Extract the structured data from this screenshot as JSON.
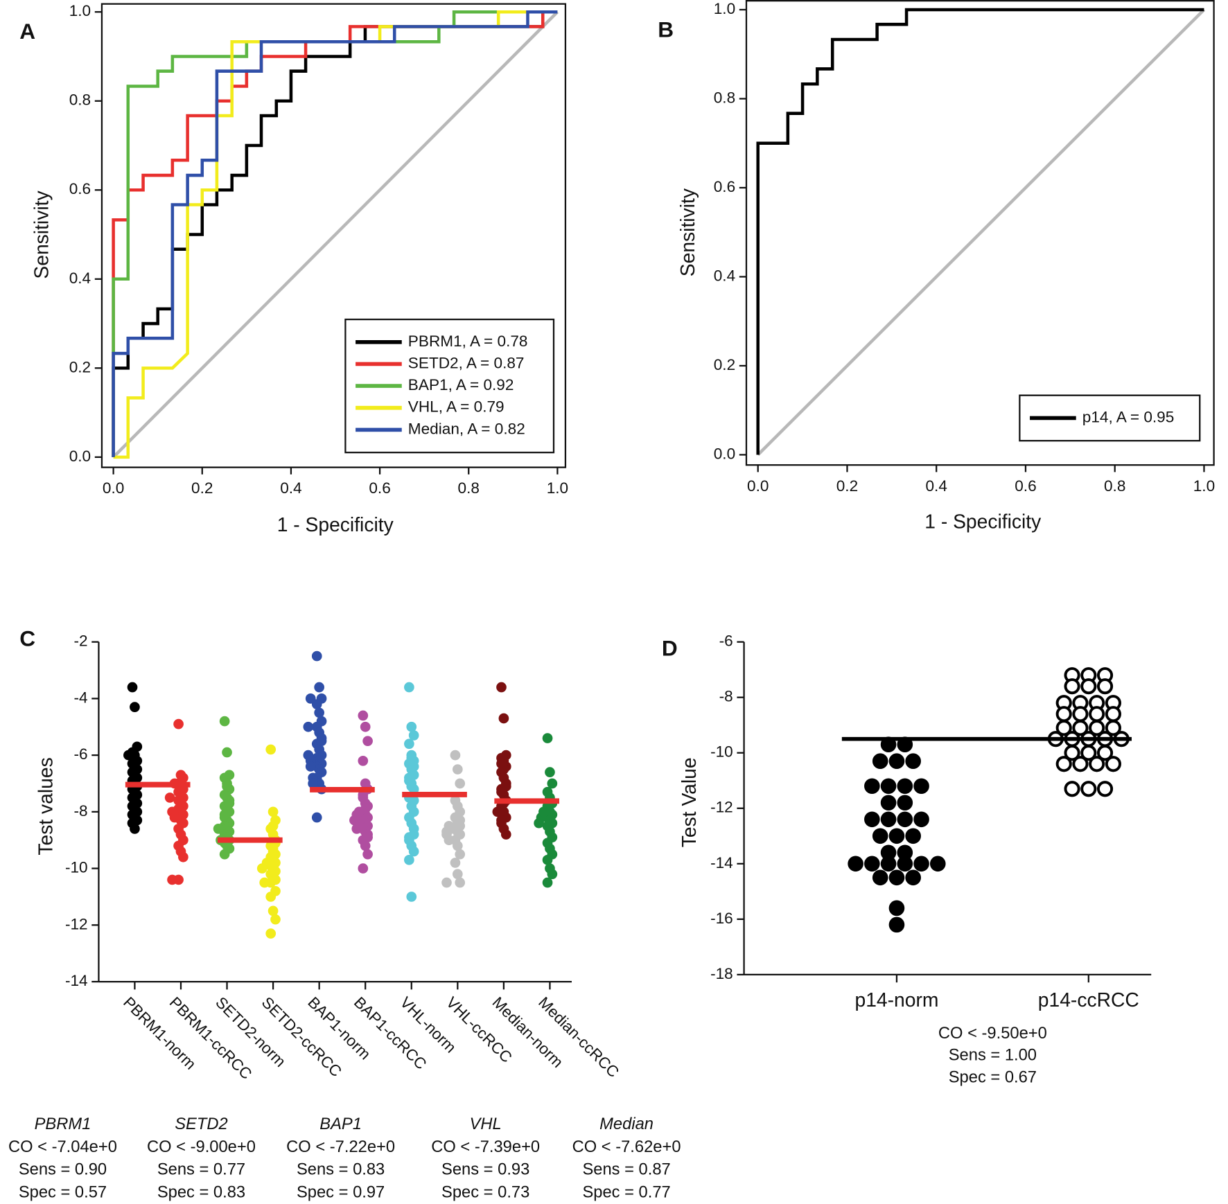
{
  "chart_data": [
    {
      "type": "line",
      "panel_label": "A",
      "xlabel": "1 - Specificity",
      "ylabel": "Sensitivity",
      "xlim": [
        -0.026,
        1.018
      ],
      "ylim": [
        -0.023,
        1.018
      ],
      "xticks": [
        {
          "value": 0,
          "label": "0.0"
        },
        0.2,
        0.4,
        0.6,
        0.8,
        {
          "value": 1,
          "label": "1.0"
        }
      ],
      "yticks": [
        {
          "value": 0,
          "label": "0.0"
        },
        0.2,
        0.4,
        0.6,
        0.8,
        {
          "value": 1,
          "label": "1.0"
        }
      ],
      "legend": "lower right",
      "series": [
        {
          "name": "PBRM1, A = 0.78",
          "color": "#000000",
          "x": [
            0,
            0,
            0.033,
            0.033,
            0.067,
            0.067,
            0.1,
            0.1,
            0.133,
            0.133,
            0.167,
            0.167,
            0.2,
            0.2,
            0.233,
            0.233,
            0.267,
            0.267,
            0.3,
            0.3,
            0.333,
            0.333,
            0.367,
            0.367,
            0.4,
            0.4,
            0.433,
            0.433,
            0.533,
            0.533,
            0.567,
            0.567,
            0.967,
            0.967,
            1
          ],
          "values": [
            0,
            0.2,
            0.2,
            0.267,
            0.267,
            0.3,
            0.3,
            0.333,
            0.333,
            0.467,
            0.467,
            0.5,
            0.5,
            0.567,
            0.567,
            0.6,
            0.6,
            0.633,
            0.633,
            0.7,
            0.7,
            0.767,
            0.767,
            0.8,
            0.8,
            0.867,
            0.867,
            0.9,
            0.9,
            0.933,
            0.933,
            0.967,
            0.967,
            1,
            1
          ]
        },
        {
          "name": "SETD2, A = 0.87",
          "color": "#e8302e",
          "x": [
            0,
            0,
            0.033,
            0.033,
            0.067,
            0.067,
            0.133,
            0.133,
            0.167,
            0.167,
            0.233,
            0.233,
            0.267,
            0.267,
            0.3,
            0.3,
            0.333,
            0.333,
            0.433,
            0.433,
            0.533,
            0.533,
            0.967,
            0.967,
            1
          ],
          "values": [
            0,
            0.533,
            0.533,
            0.6,
            0.6,
            0.633,
            0.633,
            0.667,
            0.667,
            0.767,
            0.767,
            0.8,
            0.8,
            0.833,
            0.833,
            0.867,
            0.867,
            0.9,
            0.9,
            0.933,
            0.933,
            0.967,
            0.967,
            1,
            1
          ]
        },
        {
          "name": "BAP1, A = 0.92",
          "color": "#5db643",
          "x": [
            0,
            0,
            0.033,
            0.033,
            0.1,
            0.1,
            0.133,
            0.133,
            0.3,
            0.3,
            0.733,
            0.733,
            0.767,
            0.767,
            1
          ],
          "values": [
            0,
            0.4,
            0.4,
            0.833,
            0.833,
            0.867,
            0.867,
            0.9,
            0.9,
            0.933,
            0.933,
            0.967,
            0.967,
            1,
            1
          ]
        },
        {
          "name": "VHL, A = 0.79",
          "color": "#f2ec1c",
          "x": [
            0,
            0.033,
            0.033,
            0.067,
            0.067,
            0.133,
            0.167,
            0.167,
            0.2,
            0.2,
            0.233,
            0.233,
            0.267,
            0.267,
            0.6,
            0.6,
            0.867,
            0.867,
            1
          ],
          "values": [
            0,
            0,
            0.133,
            0.133,
            0.2,
            0.2,
            0.233,
            0.567,
            0.567,
            0.6,
            0.6,
            0.767,
            0.767,
            0.933,
            0.933,
            0.967,
            0.967,
            1,
            1
          ]
        },
        {
          "name": "Median, A = 0.82",
          "color": "#2f4fa8",
          "x": [
            0,
            0,
            0.033,
            0.033,
            0.133,
            0.133,
            0.167,
            0.167,
            0.2,
            0.2,
            0.233,
            0.233,
            0.333,
            0.333,
            0.633,
            0.633,
            0.933,
            0.933,
            1
          ],
          "values": [
            0,
            0.233,
            0.233,
            0.267,
            0.267,
            0.567,
            0.567,
            0.633,
            0.633,
            0.667,
            0.667,
            0.867,
            0.867,
            0.933,
            0.933,
            0.967,
            0.967,
            1,
            1
          ]
        }
      ]
    },
    {
      "type": "line",
      "panel_label": "B",
      "xlabel": "1 - Specificity",
      "ylabel": "Sensitivity",
      "xlim": [
        -0.026,
        1.022
      ],
      "ylim": [
        -0.023,
        1.02
      ],
      "xticks": [
        {
          "value": 0,
          "label": "0.0"
        },
        0.2,
        0.4,
        0.6,
        0.8,
        {
          "value": 1,
          "label": "1.0"
        }
      ],
      "yticks": [
        {
          "value": 0,
          "label": "0.0"
        },
        0.2,
        0.4,
        0.6,
        0.8,
        {
          "value": 1,
          "label": "1.0"
        }
      ],
      "legend": "lower right",
      "series": [
        {
          "name": "p14, A = 0.95",
          "color": "#000000",
          "x": [
            0,
            0,
            0.067,
            0.067,
            0.1,
            0.1,
            0.133,
            0.133,
            0.167,
            0.167,
            0.267,
            0.267,
            0.333,
            0.333,
            1
          ],
          "values": [
            0,
            0.7,
            0.7,
            0.767,
            0.767,
            0.833,
            0.833,
            0.867,
            0.867,
            0.933,
            0.933,
            0.967,
            0.967,
            1,
            1
          ]
        }
      ]
    },
    {
      "type": "strip",
      "panel_label": "C",
      "ylabel": "Test values",
      "ylim": [
        -14,
        -2
      ],
      "yticks": [
        -2,
        -4,
        -6,
        -8,
        -10,
        -12,
        -14
      ],
      "categories": [
        "PBRM1-norm",
        "PBRM1-ccRCC",
        "SETD2-norm",
        "SETD2-ccRCC",
        "BAP1-norm",
        "BAP1-ccRCC",
        "VHL-norm",
        "VHL-ccRCC",
        "Median-norm",
        "Median-ccRCC"
      ],
      "colors": [
        "#000000",
        "#e8302e",
        "#5db643",
        "#f2ec1c",
        "#2f4fa8",
        "#b04ea0",
        "#5bc8d8",
        "#c0c0c0",
        "#7b1010",
        "#1a8a3a"
      ],
      "values": [
        [
          -3.6,
          -4.3,
          -5.7,
          -5.9,
          -6.0,
          -6.2,
          -6.3,
          -6.4,
          -6.5,
          -6.6,
          -6.7,
          -6.8,
          -6.9,
          -7.0,
          -7.1,
          -7.2,
          -7.3,
          -7.4,
          -7.5,
          -7.6,
          -7.7,
          -7.8,
          -7.9,
          -8.0,
          -8.1,
          -8.2,
          -8.3,
          -8.4,
          -8.6,
          -6.0
        ],
        [
          -4.9,
          -6.7,
          -6.8,
          -7.0,
          -7.1,
          -7.2,
          -7.3,
          -7.4,
          -7.5,
          -7.6,
          -7.7,
          -7.8,
          -7.9,
          -8.0,
          -8.1,
          -8.2,
          -8.3,
          -8.4,
          -8.6,
          -8.8,
          -9.0,
          -9.2,
          -9.4,
          -9.6,
          -10.4,
          -10.4,
          -7.0,
          -7.5,
          -8.0,
          -8.2
        ],
        [
          -4.8,
          -5.9,
          -6.7,
          -6.8,
          -7.0,
          -7.2,
          -7.4,
          -7.5,
          -7.6,
          -7.8,
          -7.9,
          -8.0,
          -8.2,
          -8.3,
          -8.4,
          -8.5,
          -8.6,
          -8.7,
          -8.8,
          -8.9,
          -9.0,
          -9.1,
          -9.2,
          -9.3,
          -9.5,
          -7.1,
          -7.7,
          -8.1,
          -8.6,
          -9.0
        ],
        [
          -5.8,
          -8.0,
          -8.3,
          -8.6,
          -8.8,
          -9.0,
          -9.2,
          -9.3,
          -9.5,
          -9.6,
          -9.7,
          -9.8,
          -9.9,
          -10.0,
          -10.1,
          -10.2,
          -10.3,
          -10.4,
          -10.5,
          -10.5,
          -10.8,
          -11.0,
          -11.5,
          -11.8,
          -12.3,
          -9.4,
          -9.8,
          -10.0,
          -8.5,
          -9.1
        ],
        [
          -2.5,
          -3.6,
          -4.0,
          -4.2,
          -4.5,
          -4.8,
          -5.0,
          -5.2,
          -5.4,
          -5.6,
          -5.8,
          -6.0,
          -6.1,
          -6.2,
          -6.3,
          -6.4,
          -6.5,
          -6.6,
          -6.8,
          -7.0,
          -7.2,
          -8.2,
          -4.0,
          -5.5,
          -6.0,
          -6.2,
          -6.8,
          -5.0,
          -6.4,
          -7.0
        ],
        [
          -4.6,
          -5.0,
          -5.5,
          -6.2,
          -7.0,
          -7.2,
          -7.5,
          -7.7,
          -7.8,
          -8.0,
          -8.1,
          -8.2,
          -8.3,
          -8.4,
          -8.5,
          -8.6,
          -8.7,
          -8.8,
          -9.0,
          -9.2,
          -9.5,
          -10.0,
          -7.9,
          -8.0,
          -8.3,
          -8.6,
          -8.9,
          -7.4,
          -8.1,
          -8.5
        ],
        [
          -3.6,
          -5.0,
          -5.3,
          -5.6,
          -6.0,
          -6.2,
          -6.3,
          -6.5,
          -6.7,
          -6.9,
          -7.0,
          -7.2,
          -7.5,
          -7.8,
          -8.0,
          -8.2,
          -8.4,
          -8.6,
          -8.9,
          -9.2,
          -9.4,
          -9.7,
          -11.0,
          -6.4,
          -6.8,
          -7.1,
          -8.8,
          -9.0,
          -6.1,
          -7.6
        ],
        [
          -6.0,
          -6.5,
          -7.0,
          -7.6,
          -7.8,
          -8.0,
          -8.2,
          -8.4,
          -8.5,
          -8.6,
          -8.7,
          -8.8,
          -9.0,
          -9.2,
          -9.5,
          -9.8,
          -10.2,
          -10.5,
          -10.5,
          -8.5,
          -8.6,
          -8.8,
          -9.0,
          -8.3,
          -8.7
        ],
        [
          -3.6,
          -4.7,
          -6.0,
          -6.1,
          -6.2,
          -6.4,
          -6.6,
          -6.8,
          -7.0,
          -7.2,
          -7.4,
          -7.6,
          -7.8,
          -8.0,
          -8.2,
          -8.4,
          -8.6,
          -8.8,
          -6.3,
          -6.5,
          -7.1,
          -7.3,
          -7.7,
          -8.0,
          -8.3
        ],
        [
          -5.4,
          -6.6,
          -7.0,
          -7.3,
          -7.5,
          -7.7,
          -7.8,
          -8.0,
          -8.1,
          -8.2,
          -8.3,
          -8.4,
          -8.5,
          -8.7,
          -8.9,
          -9.1,
          -9.3,
          -9.5,
          -9.7,
          -10.0,
          -10.2,
          -10.5,
          -8.2,
          -8.0,
          -8.4
        ]
      ],
      "stats": [
        {
          "gene": "PBRM1",
          "cutoff": -7.04,
          "cutoff_label": "CO < -7.04e+0",
          "sens": "Sens = 0.90",
          "spec": "Spec = 0.57"
        },
        {
          "gene": "SETD2",
          "cutoff": -9.0,
          "cutoff_label": "CO < -9.00e+0",
          "sens": "Sens = 0.77",
          "spec": "Spec = 0.83"
        },
        {
          "gene": "BAP1",
          "cutoff": -7.22,
          "cutoff_label": "CO < -7.22e+0",
          "sens": "Sens = 0.83",
          "spec": "Spec = 0.97"
        },
        {
          "gene": "VHL",
          "cutoff": -7.39,
          "cutoff_label": "CO < -7.39e+0",
          "sens": "Sens = 0.93",
          "spec": "Spec = 0.73"
        },
        {
          "gene": "Median",
          "cutoff": -7.62,
          "cutoff_label": "CO < -7.62e+0",
          "sens": "Sens = 0.87",
          "spec": "Spec = 0.77"
        }
      ]
    },
    {
      "type": "dotgrid",
      "panel_label": "D",
      "ylabel": "Test Value",
      "ylim": [
        -18,
        -6
      ],
      "yticks": [
        -6,
        -8,
        -10,
        -12,
        -14,
        -16,
        -18
      ],
      "categories": [
        "p14-norm",
        "p14-ccRCC"
      ],
      "markers": [
        "filled",
        "open"
      ],
      "values": [
        [
          -9.7,
          -9.7,
          -10.3,
          -10.3,
          -10.3,
          -11.2,
          -11.2,
          -11.2,
          -11.2,
          -11.8,
          -11.8,
          -12.4,
          -12.4,
          -12.4,
          -12.4,
          -13.0,
          -13.0,
          -13.0,
          -13.6,
          -13.6,
          -14.0,
          -14.0,
          -14.0,
          -14.0,
          -14.0,
          -14.0,
          -14.5,
          -14.5,
          -14.5,
          -15.6,
          -16.2
        ],
        [
          -7.2,
          -7.2,
          -7.2,
          -7.6,
          -7.6,
          -7.6,
          -8.2,
          -8.2,
          -8.2,
          -8.2,
          -8.6,
          -8.6,
          -8.6,
          -8.6,
          -9.1,
          -9.1,
          -9.1,
          -9.1,
          -9.5,
          -9.5,
          -9.5,
          -9.5,
          -9.5,
          -10.0,
          -10.0,
          -10.0,
          -10.4,
          -10.4,
          -10.4,
          -10.4,
          -11.3,
          -11.3,
          -11.3
        ]
      ],
      "stats": {
        "cutoff": -9.5,
        "cutoff_label": "CO < -9.50e+0",
        "sens": "Sens = 1.00",
        "spec": "Spec = 0.67"
      }
    }
  ]
}
